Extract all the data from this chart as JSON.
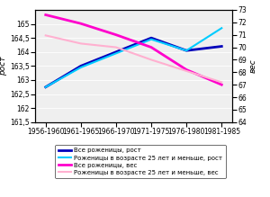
{
  "x_labels": [
    "1956-1960",
    "1961-1965",
    "1966-1970",
    "1971-1975",
    "1976-1980",
    "1981-1985"
  ],
  "x_positions": [
    0,
    1,
    2,
    3,
    4,
    5
  ],
  "series": {
    "all_height": {
      "values": [
        162.75,
        163.5,
        164.0,
        164.5,
        164.05,
        164.2
      ],
      "color": "#0000BB",
      "linewidth": 2.0,
      "label": "Все роженицы, рост"
    },
    "young_height": {
      "values": [
        162.75,
        163.45,
        163.95,
        164.45,
        164.05,
        164.85
      ],
      "color": "#00CCFF",
      "linewidth": 1.5,
      "label": "Роженицы в возрасте 25 лет и меньше, рост"
    },
    "all_weight": {
      "values": [
        72.6,
        71.9,
        71.0,
        70.0,
        68.2,
        67.0
      ],
      "color": "#FF00CC",
      "linewidth": 2.0,
      "label": "Все роженицы, вес"
    },
    "young_weight": {
      "values": [
        70.95,
        70.3,
        70.0,
        69.0,
        68.1,
        67.2
      ],
      "color": "#FFB0D0",
      "linewidth": 1.5,
      "label": "Роженицы в возрасте 25 лет и меньше, вес"
    }
  },
  "left_ylim": [
    161.5,
    165.5
  ],
  "right_ylim": [
    64,
    73
  ],
  "left_yticks": [
    161.5,
    162.0,
    162.5,
    163.0,
    163.5,
    164.0,
    164.5,
    165.0
  ],
  "right_yticks": [
    64,
    65,
    66,
    67,
    68,
    69,
    70,
    71,
    72,
    73
  ],
  "left_ylabel": "рост",
  "right_ylabel": "вес",
  "legend_fontsize": 5.0,
  "tick_fontsize": 5.5,
  "label_fontsize": 6.5,
  "bg_color": "#EFEFEF"
}
